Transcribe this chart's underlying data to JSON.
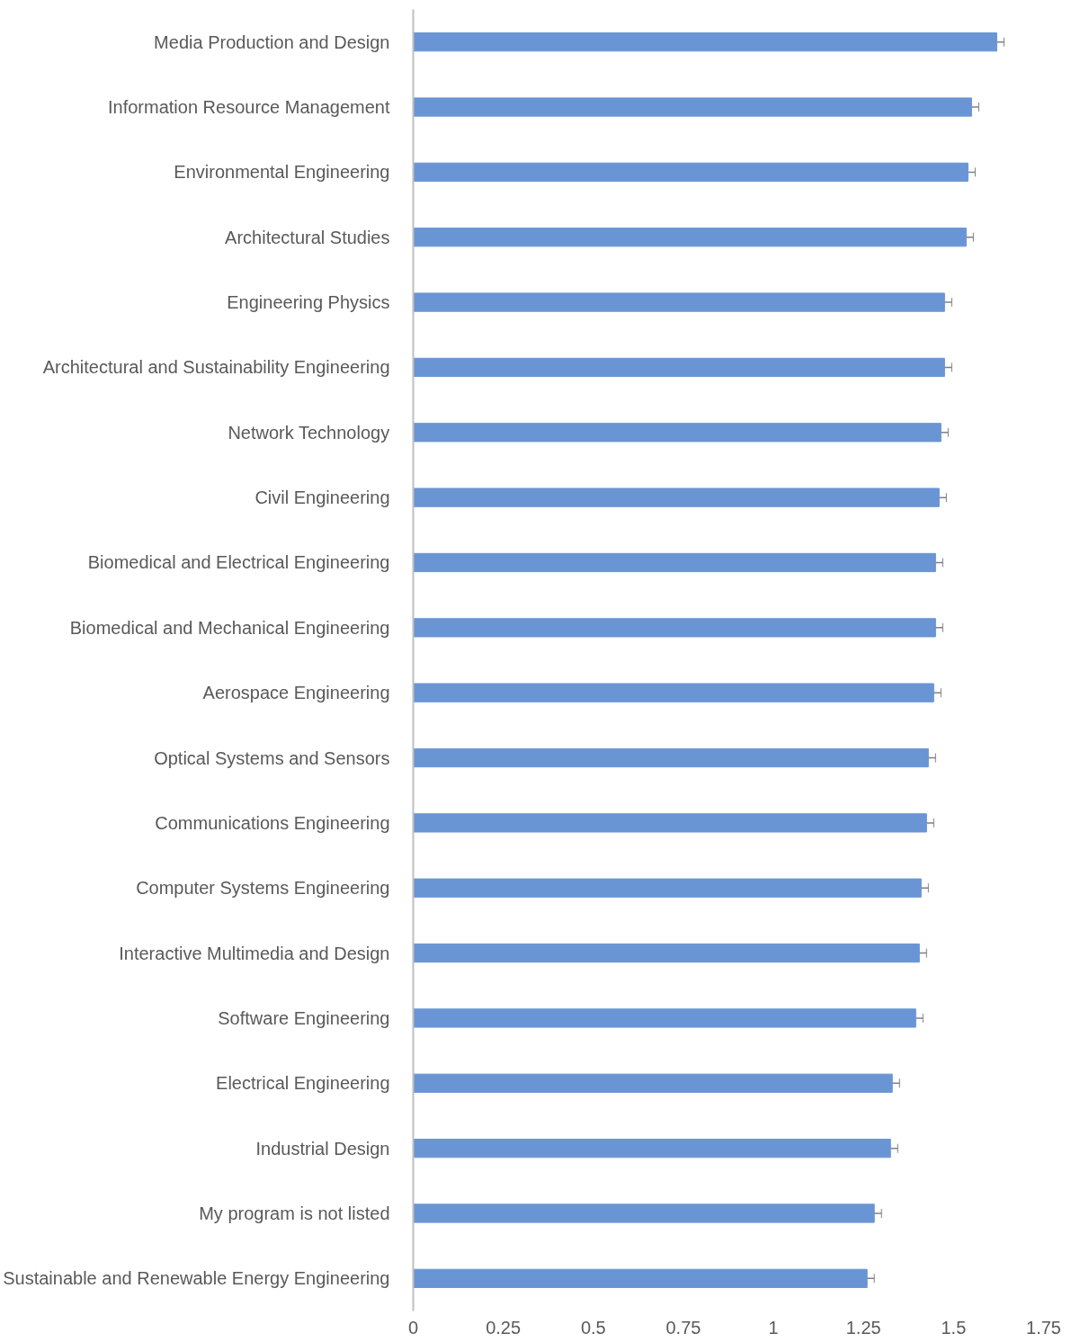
{
  "chart_data": {
    "type": "bar",
    "orientation": "horizontal",
    "categories": [
      "Media Production and Design",
      "Information Resource Management",
      "Environmental Engineering",
      "Architectural Studies",
      "Engineering Physics",
      "Architectural and Sustainability Engineering",
      "Network Technology",
      "Civil Engineering",
      "Biomedical and Electrical Engineering",
      "Biomedical and Mechanical Engineering",
      "Aerospace Engineering",
      "Optical Systems and Sensors",
      "Communications Engineering",
      "Computer Systems Engineering",
      "Interactive Multimedia and Design",
      "Software Engineering",
      "Electrical Engineering",
      "Industrial Design",
      "My program is not listed",
      "Sustainable and Renewable Energy Engineering"
    ],
    "values": [
      1.62,
      1.55,
      1.54,
      1.535,
      1.475,
      1.475,
      1.465,
      1.46,
      1.45,
      1.45,
      1.445,
      1.43,
      1.425,
      1.41,
      1.405,
      1.395,
      1.33,
      1.325,
      1.28,
      1.26
    ],
    "errors": [
      0.02,
      0.02,
      0.02,
      0.02,
      0.02,
      0.02,
      0.02,
      0.02,
      0.02,
      0.02,
      0.02,
      0.02,
      0.02,
      0.02,
      0.02,
      0.02,
      0.02,
      0.02,
      0.02,
      0.02
    ],
    "color": "#6a95d4",
    "xlim": [
      0,
      1.75
    ],
    "xticks": [
      0,
      0.25,
      0.5,
      0.75,
      1,
      1.25,
      1.5,
      1.75
    ],
    "grid": false
  }
}
